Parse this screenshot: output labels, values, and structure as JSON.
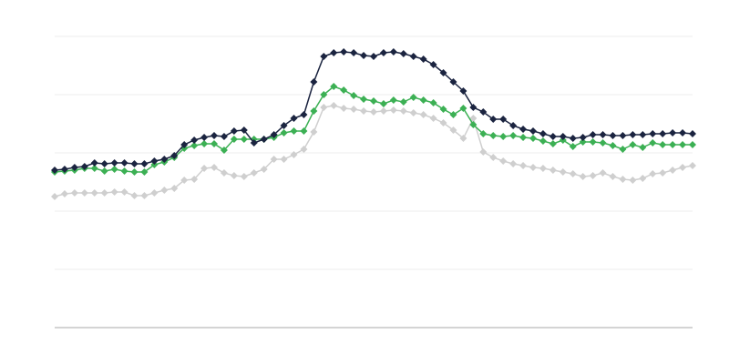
{
  "chart_data": {
    "type": "line",
    "categories": [
      null,
      null,
      null,
      null,
      null,
      null,
      null,
      null,
      null,
      null,
      null,
      null,
      null,
      null,
      null,
      null,
      null,
      null,
      null,
      null,
      null,
      null,
      null,
      null,
      null,
      null,
      null,
      null,
      null,
      null,
      null,
      null,
      null,
      null,
      null,
      null,
      null,
      null,
      null,
      null,
      null,
      null,
      null,
      null,
      null,
      null,
      null,
      null,
      null,
      null,
      null,
      null,
      null,
      null,
      null,
      null,
      null,
      null,
      null,
      null,
      null,
      null,
      null,
      null,
      null
    ],
    "ylim": [
      0,
      320
    ],
    "yticks": [
      0,
      64,
      128,
      192,
      256,
      320
    ],
    "grid": true,
    "series": [
      {
        "color": "#cfcfcf",
        "values": [
          144,
          147,
          148,
          148,
          148,
          148,
          149,
          149,
          145,
          145,
          148,
          151,
          153,
          162,
          163,
          175,
          176,
          170,
          167,
          166,
          170,
          174,
          185,
          185,
          190,
          196,
          215,
          242,
          244,
          241,
          240,
          238,
          237,
          238,
          239,
          238,
          236,
          234,
          230,
          225,
          217,
          208,
          230,
          193,
          187,
          183,
          180,
          178,
          176,
          175,
          173,
          171,
          169,
          166,
          167,
          170,
          166,
          163,
          162,
          164,
          169,
          170,
          173,
          176,
          178
        ]
      },
      {
        "color": "#3cb054",
        "values": [
          171,
          172,
          173,
          175,
          175,
          172,
          174,
          172,
          171,
          171,
          179,
          182,
          187,
          197,
          200,
          202,
          202,
          195,
          207,
          207,
          207,
          207,
          209,
          214,
          216,
          216,
          238,
          256,
          265,
          261,
          255,
          251,
          249,
          246,
          250,
          248,
          253,
          250,
          247,
          240,
          234,
          241,
          223,
          213,
          211,
          210,
          211,
          209,
          208,
          205,
          202,
          206,
          199,
          204,
          204,
          203,
          200,
          196,
          201,
          198,
          203,
          201,
          201,
          201,
          201
        ]
      },
      {
        "color": "#1b2440",
        "values": [
          173,
          174,
          176,
          177,
          181,
          180,
          181,
          181,
          180,
          180,
          183,
          185,
          189,
          201,
          206,
          209,
          211,
          210,
          216,
          217,
          203,
          207,
          212,
          222,
          230,
          234,
          270,
          298,
          302,
          303,
          302,
          299,
          298,
          302,
          303,
          301,
          298,
          295,
          289,
          280,
          270,
          260,
          242,
          237,
          229,
          229,
          222,
          218,
          216,
          213,
          210,
          210,
          208,
          209,
          212,
          212,
          211,
          211,
          212,
          212,
          213,
          213,
          214,
          214,
          213
        ]
      }
    ]
  }
}
